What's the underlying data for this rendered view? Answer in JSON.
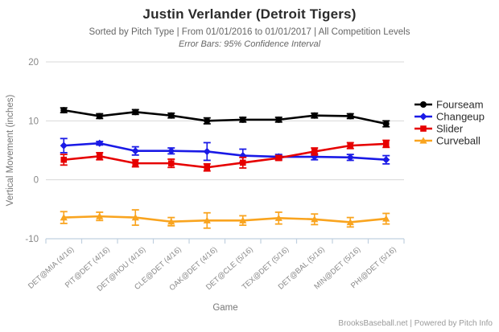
{
  "header": {
    "title": "Justin Verlander (Detroit Tigers)",
    "subtitle": "Sorted by Pitch Type | From 01/01/2016 to 01/01/2017 | All Competition Levels",
    "note": "Error Bars: 95% Confidence Interval"
  },
  "footer": {
    "credit": "BrooksBaseball.net | Powered by Pitch Info"
  },
  "chart_data": {
    "type": "line",
    "title": "Justin Verlander (Detroit Tigers)",
    "xlabel": "Game",
    "ylabel": "Vertical Movement (inches)",
    "ylim": [
      -10,
      20
    ],
    "yticks": [
      -10,
      0,
      10,
      20
    ],
    "grid": true,
    "legend_position": "right",
    "error_bars": "95% Confidence Interval",
    "gridline_color": "#d8d8d8",
    "axis_line_color": "#c0d0e0",
    "tick_label_color": "#888888",
    "legend_text_color": "#2b2b2b",
    "categories": [
      "DET@MIA (4/16)",
      "PIT@DET (4/16)",
      "DET@HOU (4/16)",
      "CLE@DET (4/16)",
      "OAK@DET (4/16)",
      "DET@CLE (5/16)",
      "TEX@DET (5/16)",
      "DET@BAL (5/16)",
      "MIN@DET (5/16)",
      "PHI@DET (5/16)"
    ],
    "series": [
      {
        "name": "Fourseam",
        "color": "#000000",
        "marker": "circle",
        "values": [
          11.8,
          10.8,
          11.5,
          10.9,
          10.0,
          10.2,
          10.2,
          10.9,
          10.8,
          9.5
        ],
        "errors": [
          0.4,
          0.4,
          0.4,
          0.4,
          0.5,
          0.4,
          0.4,
          0.4,
          0.4,
          0.5
        ]
      },
      {
        "name": "Changeup",
        "color": "#1a1ae6",
        "marker": "diamond",
        "values": [
          5.8,
          6.2,
          4.9,
          4.9,
          4.8,
          4.1,
          3.9,
          3.9,
          3.8,
          3.4
        ],
        "errors": [
          1.2,
          0.3,
          0.7,
          0.5,
          1.5,
          1.1,
          0.4,
          0.5,
          0.5,
          0.7
        ]
      },
      {
        "name": "Slider",
        "color": "#e60000",
        "marker": "square",
        "values": [
          3.4,
          4.0,
          2.8,
          2.8,
          2.1,
          2.9,
          3.7,
          4.8,
          5.8,
          6.1
        ],
        "errors": [
          0.9,
          0.6,
          0.6,
          0.7,
          0.6,
          0.9,
          0.4,
          0.6,
          0.5,
          0.6
        ]
      },
      {
        "name": "Curveball",
        "color": "#f9a41f",
        "marker": "triangle",
        "values": [
          -6.4,
          -6.2,
          -6.4,
          -7.1,
          -6.9,
          -6.9,
          -6.5,
          -6.7,
          -7.2,
          -6.6
        ],
        "errors": [
          1.0,
          0.7,
          1.3,
          0.7,
          1.3,
          0.8,
          1.0,
          0.9,
          0.8,
          0.9
        ]
      }
    ]
  }
}
